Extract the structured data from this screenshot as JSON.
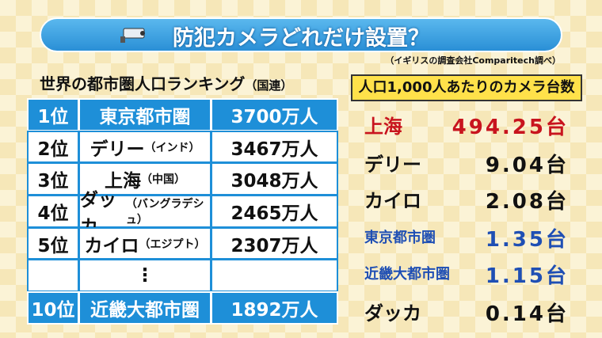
{
  "header": {
    "title": "防犯カメラどれだけ設置？",
    "source": "（イギリスの調査会社Comparitech調べ）"
  },
  "ranking": {
    "title": "世界の都市圏人口ランキング",
    "title_note": "（国連）",
    "rows": [
      {
        "rank": "1位",
        "city": "東京都市圏",
        "note": null,
        "population": "3700万人",
        "highlight": true
      },
      {
        "rank": "2位",
        "city": "デリー",
        "note": "（インド）",
        "population": "3467万人",
        "highlight": false
      },
      {
        "rank": "3位",
        "city": "上海",
        "note": "（中国）",
        "population": "3048万人",
        "highlight": false
      },
      {
        "rank": "4位",
        "city": "ダッカ",
        "note": "（バングラデシュ）",
        "population": "2465万人",
        "highlight": false
      },
      {
        "rank": "5位",
        "city": "カイロ",
        "note": "（エジプト）",
        "population": "2307万人",
        "highlight": false
      },
      {
        "rank": null,
        "city": "⋮",
        "note": null,
        "population": null,
        "highlight": false
      },
      {
        "rank": "10位",
        "city": "近畿大都市圏",
        "note": null,
        "population": "1892万人",
        "highlight": true
      }
    ]
  },
  "cameras": {
    "title": "人口1,000人あたりのカメラ台数",
    "rows": [
      {
        "city": "上海",
        "value": "494.25台",
        "color": "#c8141e"
      },
      {
        "city": "デリー",
        "value": "9.04台",
        "color": "#111111"
      },
      {
        "city": "カイロ",
        "value": "2.08台",
        "color": "#111111"
      },
      {
        "city": "東京都市圏",
        "value": "1.35台",
        "color": "#1f4fb4"
      },
      {
        "city": "近畿大都市圏",
        "value": "1.15台",
        "color": "#1f4fb4"
      },
      {
        "city": "ダッカ",
        "value": "0.14台",
        "color": "#111111"
      }
    ]
  }
}
